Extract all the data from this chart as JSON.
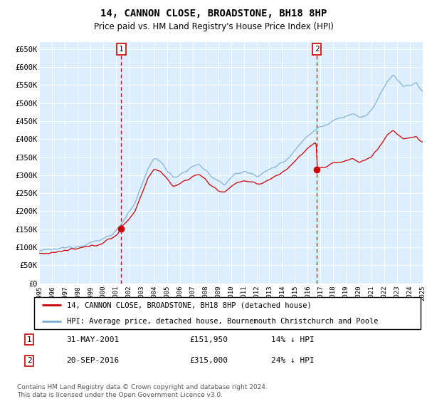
{
  "title": "14, CANNON CLOSE, BROADSTONE, BH18 8HP",
  "subtitle": "Price paid vs. HM Land Registry's House Price Index (HPI)",
  "ylabel_ticks": [
    "£0",
    "£50K",
    "£100K",
    "£150K",
    "£200K",
    "£250K",
    "£300K",
    "£350K",
    "£400K",
    "£450K",
    "£500K",
    "£550K",
    "£600K",
    "£650K"
  ],
  "ytick_values": [
    0,
    50000,
    100000,
    150000,
    200000,
    250000,
    300000,
    350000,
    400000,
    450000,
    500000,
    550000,
    600000,
    650000
  ],
  "x_start_year": 1995,
  "x_end_year": 2025,
  "purchase1_year": 2001.417,
  "purchase1_price": 151950,
  "purchase2_year": 2016.722,
  "purchase2_price": 315000,
  "legend_line1": "14, CANNON CLOSE, BROADSTONE, BH18 8HP (detached house)",
  "legend_line2": "HPI: Average price, detached house, Bournemouth Christchurch and Poole",
  "annotation1_date": "31-MAY-2001",
  "annotation1_price": "£151,950",
  "annotation1_hpi": "14% ↓ HPI",
  "annotation2_date": "20-SEP-2016",
  "annotation2_price": "£315,000",
  "annotation2_hpi": "24% ↓ HPI",
  "footer": "Contains HM Land Registry data © Crown copyright and database right 2024.\nThis data is licensed under the Open Government Licence v3.0.",
  "hpi_color": "#7aadd4",
  "price_color": "#cc0000",
  "bg_color": "#ddeeff",
  "grid_color": "#c8d8e8",
  "vline_color": "#cc0000"
}
